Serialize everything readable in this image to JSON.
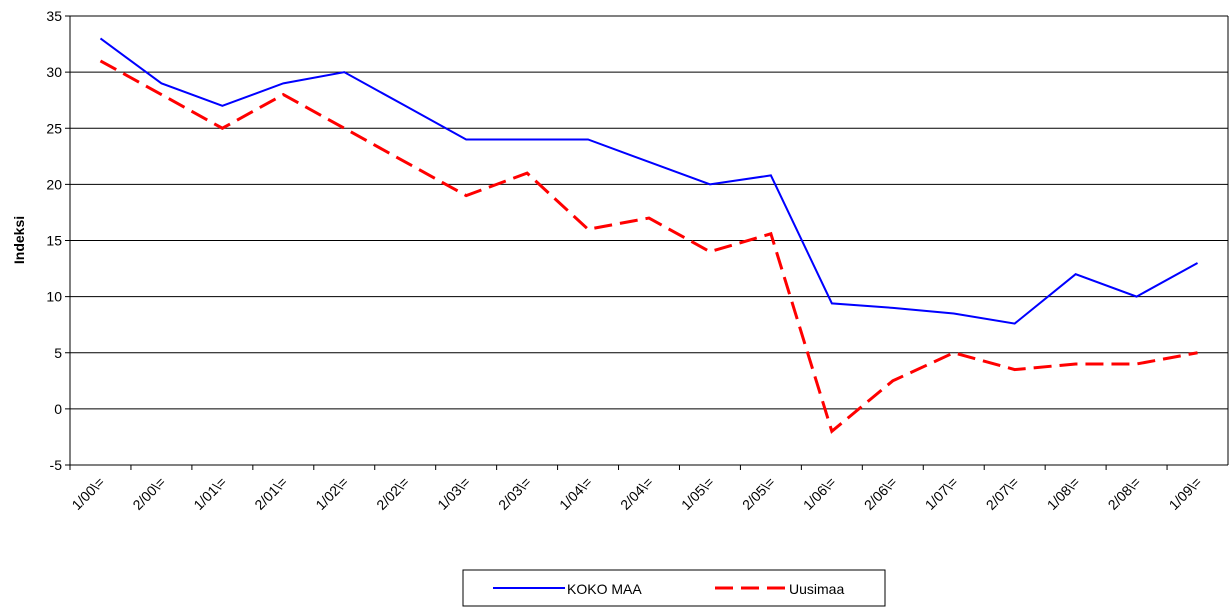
{
  "chart_data": {
    "type": "line",
    "y_label": "Indeksi",
    "categories": [
      "1/00\\=",
      "2/00\\=",
      "1/01\\=",
      "2/01\\=",
      "1/02\\=",
      "2/02\\=",
      "1/03\\=",
      "2/03\\=",
      "1/04\\=",
      "2/04\\=",
      "1/05\\=",
      "2/05\\=",
      "1/06\\=",
      "2/06\\=",
      "1/07\\=",
      "2/07\\=",
      "1/08\\=",
      "2/08\\=",
      "1/09\\="
    ],
    "series": [
      {
        "name": "KOKO MAA",
        "color": "#0000ff",
        "dash": "solid",
        "values": [
          33,
          29,
          27,
          29,
          30,
          27,
          24,
          24,
          24,
          22,
          20,
          20.8,
          9.4,
          9,
          8.5,
          7.6,
          12,
          10,
          13
        ]
      },
      {
        "name": "Uusimaa",
        "color": "#ff0000",
        "dash": "dashed",
        "values": [
          31,
          28,
          25,
          28,
          25,
          22,
          19,
          21,
          16,
          17,
          14,
          15.6,
          -2,
          2.5,
          5,
          3.5,
          4,
          4,
          5
        ]
      }
    ],
    "ylim": [
      -5,
      35
    ],
    "yticks": [
      -5,
      0,
      5,
      10,
      15,
      20,
      25,
      30,
      35
    ],
    "grid": true,
    "legend": "bottom"
  }
}
